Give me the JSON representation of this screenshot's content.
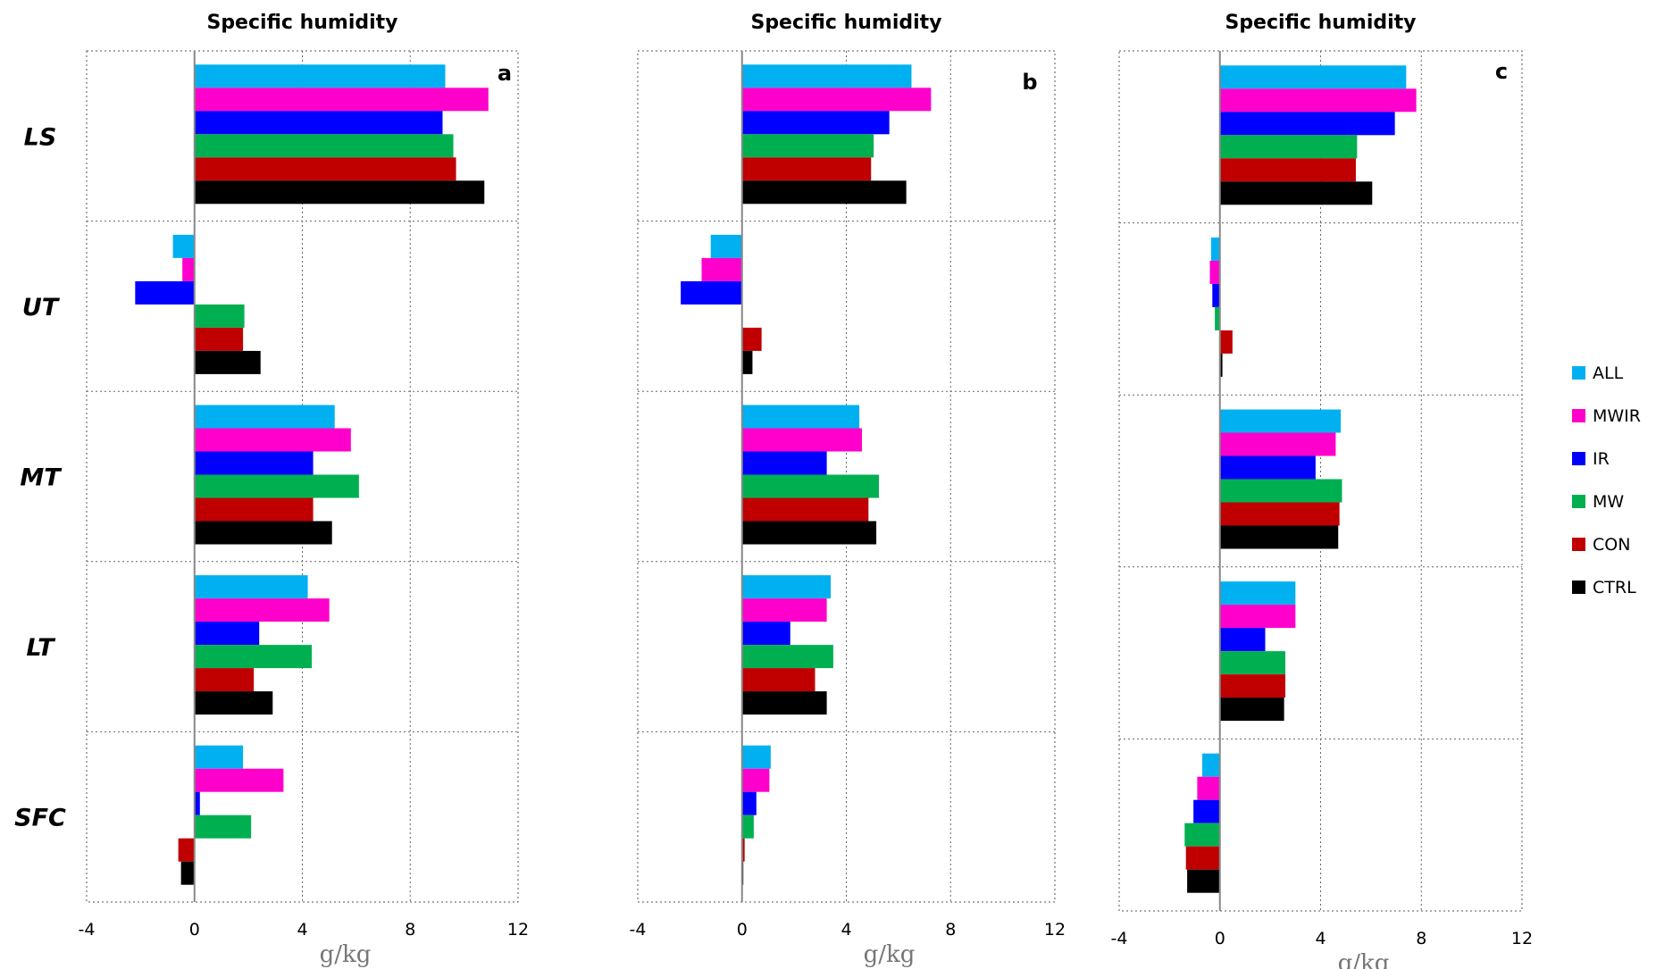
{
  "chart_data": [
    {
      "type": "bar",
      "orientation": "horizontal",
      "title": "Specific humidity",
      "panel_label": "a",
      "xlabel": "g/kg",
      "xlim": [
        -4,
        12
      ],
      "xticks": [
        -4,
        0,
        4,
        8,
        12
      ],
      "categories": [
        "LS",
        "UT",
        "MT",
        "LT",
        "SFC"
      ],
      "series": [
        {
          "name": "ALL",
          "values": [
            9.3,
            -0.8,
            5.2,
            4.2,
            1.8
          ]
        },
        {
          "name": "MWIR",
          "values": [
            10.9,
            -0.45,
            5.8,
            5.0,
            3.3
          ]
        },
        {
          "name": "IR",
          "values": [
            9.2,
            -2.2,
            4.4,
            2.4,
            0.2
          ]
        },
        {
          "name": "MW",
          "values": [
            9.6,
            1.85,
            6.1,
            4.35,
            2.1
          ]
        },
        {
          "name": "CON",
          "values": [
            9.7,
            1.8,
            4.4,
            2.2,
            -0.6
          ]
        },
        {
          "name": "CTRL",
          "values": [
            10.75,
            2.45,
            5.1,
            2.9,
            -0.5
          ]
        }
      ],
      "grid": true
    },
    {
      "type": "bar",
      "orientation": "horizontal",
      "title": "Specific humidity",
      "panel_label": "b",
      "xlabel": "g/kg",
      "xlim": [
        -4,
        12
      ],
      "xticks": [
        -4,
        0,
        4,
        8,
        12
      ],
      "categories": [
        "LS",
        "UT",
        "MT",
        "LT",
        "SFC"
      ],
      "series": [
        {
          "name": "ALL",
          "values": [
            6.5,
            -1.2,
            4.5,
            3.4,
            1.1
          ]
        },
        {
          "name": "MWIR",
          "values": [
            7.25,
            -1.55,
            4.6,
            3.25,
            1.05
          ]
        },
        {
          "name": "IR",
          "values": [
            5.65,
            -2.35,
            3.25,
            1.85,
            0.55
          ]
        },
        {
          "name": "MW",
          "values": [
            5.05,
            0.0,
            5.25,
            3.5,
            0.45
          ]
        },
        {
          "name": "CON",
          "values": [
            4.95,
            0.75,
            4.85,
            2.8,
            0.1
          ]
        },
        {
          "name": "CTRL",
          "values": [
            6.3,
            0.4,
            5.15,
            3.25,
            0.05
          ]
        }
      ],
      "grid": true
    },
    {
      "type": "bar",
      "orientation": "horizontal",
      "title": "Specific humidity",
      "panel_label": "c",
      "xlabel": "g/kg",
      "xlim": [
        -4,
        12
      ],
      "xticks": [
        -4,
        0,
        4,
        8,
        12
      ],
      "categories": [
        "LS",
        "UT",
        "MT",
        "LT",
        "SFC"
      ],
      "series": [
        {
          "name": "ALL",
          "values": [
            7.4,
            -0.35,
            4.8,
            3.0,
            -0.7
          ]
        },
        {
          "name": "MWIR",
          "values": [
            7.8,
            -0.4,
            4.6,
            3.0,
            -0.9
          ]
        },
        {
          "name": "IR",
          "values": [
            6.95,
            -0.3,
            3.8,
            1.8,
            -1.05
          ]
        },
        {
          "name": "MW",
          "values": [
            5.45,
            -0.2,
            4.85,
            2.6,
            -1.4
          ]
        },
        {
          "name": "CON",
          "values": [
            5.4,
            0.5,
            4.75,
            2.6,
            -1.35
          ]
        },
        {
          "name": "CTRL",
          "values": [
            6.05,
            0.1,
            4.7,
            2.55,
            -1.3
          ]
        }
      ],
      "grid": true
    }
  ],
  "legend": {
    "placement": "right",
    "items": [
      {
        "name": "ALL",
        "color": "#00b0f0"
      },
      {
        "name": "MWIR",
        "color": "#ff00cc"
      },
      {
        "name": "IR",
        "color": "#0000ff"
      },
      {
        "name": "MW",
        "color": "#00b050"
      },
      {
        "name": "CON",
        "color": "#c00000"
      },
      {
        "name": "CTRL",
        "color": "#000000"
      }
    ]
  },
  "colors": {
    "ALL": "#00b0f0",
    "MWIR": "#ff00cc",
    "IR": "#0000ff",
    "MW": "#00b050",
    "CON": "#c00000",
    "CTRL": "#000000"
  }
}
